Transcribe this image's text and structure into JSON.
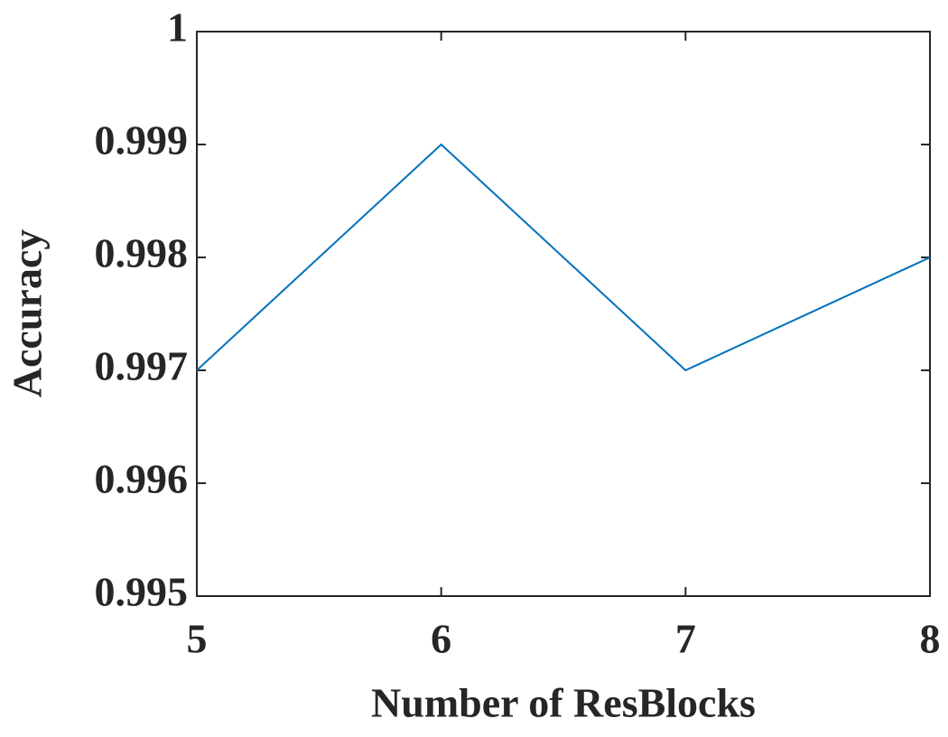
{
  "chart_data": {
    "type": "line",
    "x": [
      5,
      6,
      7,
      8
    ],
    "series": [
      {
        "name": "Accuracy",
        "color": "#0072bd",
        "values": [
          0.997,
          0.999,
          0.997,
          0.998
        ]
      }
    ],
    "xlabel": "Number of ResBlocks",
    "ylabel": "Accuracy",
    "xlim": [
      5,
      8
    ],
    "xticks": [
      5,
      6,
      7,
      8
    ],
    "ylim": [
      0.995,
      1
    ],
    "yticks": [
      0.995,
      0.996,
      0.997,
      0.998,
      0.999,
      1
    ],
    "grid": false
  }
}
